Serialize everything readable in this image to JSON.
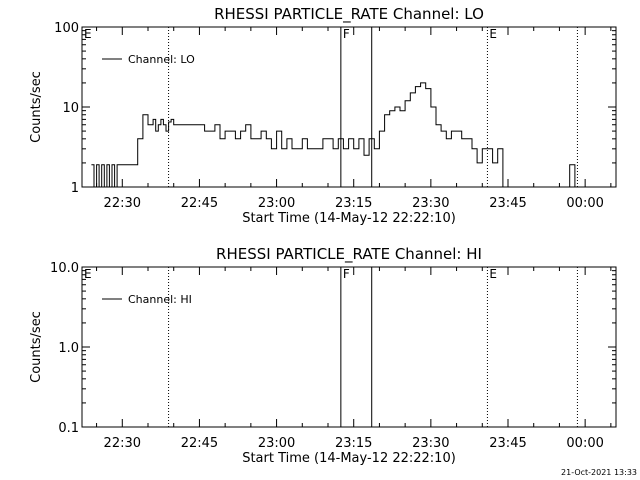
{
  "footer_date": "21-Oct-2021 13:33",
  "chart_data": [
    {
      "type": "line",
      "title": "RHESSI PARTICLE_RATE Channel: LO",
      "xlabel": "Start Time (14-May-12 22:22:10)",
      "ylabel": "Counts/sec",
      "yscale": "log",
      "ylim": [
        1,
        100
      ],
      "yticks": [
        1,
        10,
        100
      ],
      "ytick_labels": [
        "1",
        "10",
        "100"
      ],
      "xlim": [
        "22:22:10",
        "00:06:00"
      ],
      "xticks": [
        "22:30",
        "22:45",
        "23:00",
        "23:15",
        "23:30",
        "23:45",
        "00:00"
      ],
      "legend": {
        "label": "Channel: LO",
        "position": "top-left"
      },
      "markers": [
        {
          "label": "E",
          "time": "22:22:10",
          "style": "none"
        },
        {
          "label": "",
          "time": "22:39:00",
          "style": "dotted"
        },
        {
          "label": "F",
          "time": "23:12:30",
          "style": "solid"
        },
        {
          "label": "",
          "time": "23:18:30",
          "style": "solid"
        },
        {
          "label": "E",
          "time": "23:41:00",
          "style": "dotted"
        },
        {
          "label": "",
          "time": "23:58:30",
          "style": "dotted"
        }
      ],
      "series": [
        {
          "name": "Channel: LO",
          "x": [
            "22:24:00",
            "22:24:30",
            "22:25:00",
            "22:25:30",
            "22:26:00",
            "22:26:30",
            "22:27:00",
            "22:27:30",
            "22:28:00",
            "22:28:30",
            "22:29:00",
            "22:29:30",
            "22:30:00",
            "22:30:30",
            "22:31:00",
            "22:31:30",
            "22:32:00",
            "22:33:00",
            "22:34:00",
            "22:35:00",
            "22:36:00",
            "22:36:30",
            "22:37:00",
            "22:37:30",
            "22:38:00",
            "22:38:30",
            "22:39:00",
            "22:39:30",
            "22:40:00",
            "22:41:00",
            "22:42:00",
            "22:43:00",
            "22:44:00",
            "22:45:00",
            "22:46:00",
            "22:47:00",
            "22:48:00",
            "22:49:00",
            "22:50:00",
            "22:51:00",
            "22:52:00",
            "22:53:00",
            "22:54:00",
            "22:55:00",
            "22:56:00",
            "22:57:00",
            "22:58:00",
            "22:59:00",
            "23:00:00",
            "23:01:00",
            "23:02:00",
            "23:03:00",
            "23:04:00",
            "23:05:00",
            "23:06:00",
            "23:07:00",
            "23:08:00",
            "23:09:00",
            "23:10:00",
            "23:11:00",
            "23:12:00",
            "23:13:00",
            "23:14:00",
            "23:15:00",
            "23:16:00",
            "23:17:00",
            "23:18:00",
            "23:19:00",
            "23:20:00",
            "23:21:00",
            "23:22:00",
            "23:23:00",
            "23:24:00",
            "23:25:00",
            "23:26:00",
            "23:27:00",
            "23:28:00",
            "23:29:00",
            "23:30:00",
            "23:31:00",
            "23:32:00",
            "23:33:00",
            "23:34:00",
            "23:35:00",
            "23:36:00",
            "23:37:00",
            "23:38:00",
            "23:39:00",
            "23:40:00",
            "23:41:00",
            "23:42:00",
            "23:43:00",
            "23:44:00",
            "23:45:00",
            "23:46:00",
            "23:47:00",
            "23:48:00",
            "23:49:00",
            "23:50:00",
            "23:51:00",
            "23:52:00",
            "23:53:00",
            "23:54:00",
            "23:55:00",
            "23:56:00",
            "23:57:00",
            "23:58:00"
          ],
          "values": [
            1.9,
            1,
            1.9,
            1,
            1.9,
            1,
            1.9,
            1,
            1.9,
            1,
            1.9,
            1.9,
            1.9,
            1.9,
            1.9,
            1.9,
            1.9,
            4,
            8,
            6,
            7,
            5,
            6,
            7,
            6,
            5,
            6.5,
            7,
            6,
            6,
            6,
            6,
            6,
            6,
            5,
            5,
            6,
            4,
            5,
            5,
            4,
            5,
            6,
            4,
            4,
            5,
            4,
            3,
            5,
            3,
            4,
            3,
            3,
            4,
            3,
            3,
            3,
            4,
            4,
            3,
            4,
            3,
            4,
            3,
            4,
            2.5,
            4,
            3,
            5,
            8,
            9,
            10,
            9,
            12,
            15,
            18,
            20,
            17,
            10,
            6,
            5,
            4,
            5,
            5,
            4,
            4,
            3,
            2,
            3,
            3,
            2,
            3,
            1,
            1,
            1,
            1,
            1,
            1,
            1,
            1,
            1,
            1,
            1,
            1,
            1,
            1.9,
            1
          ]
        }
      ]
    },
    {
      "type": "line",
      "title": "RHESSI PARTICLE_RATE Channel: HI",
      "xlabel": "Start Time (14-May-12 22:22:10)",
      "ylabel": "Counts/sec",
      "yscale": "log",
      "ylim": [
        0.1,
        10
      ],
      "yticks": [
        0.1,
        1,
        10
      ],
      "ytick_labels": [
        "0.1",
        "1.0",
        "10.0"
      ],
      "xlim": [
        "22:22:10",
        "00:06:00"
      ],
      "xticks": [
        "22:30",
        "22:45",
        "23:00",
        "23:15",
        "23:30",
        "23:45",
        "00:00"
      ],
      "legend": {
        "label": "Channel: HI",
        "position": "top-left"
      },
      "markers": [
        {
          "label": "E",
          "time": "22:22:10",
          "style": "none"
        },
        {
          "label": "",
          "time": "22:39:00",
          "style": "dotted"
        },
        {
          "label": "F",
          "time": "23:12:30",
          "style": "solid"
        },
        {
          "label": "",
          "time": "23:18:30",
          "style": "solid"
        },
        {
          "label": "E",
          "time": "23:41:00",
          "style": "dotted"
        },
        {
          "label": "",
          "time": "23:58:30",
          "style": "dotted"
        }
      ],
      "series": [
        {
          "name": "Channel: HI",
          "x": [],
          "values": []
        }
      ]
    }
  ]
}
